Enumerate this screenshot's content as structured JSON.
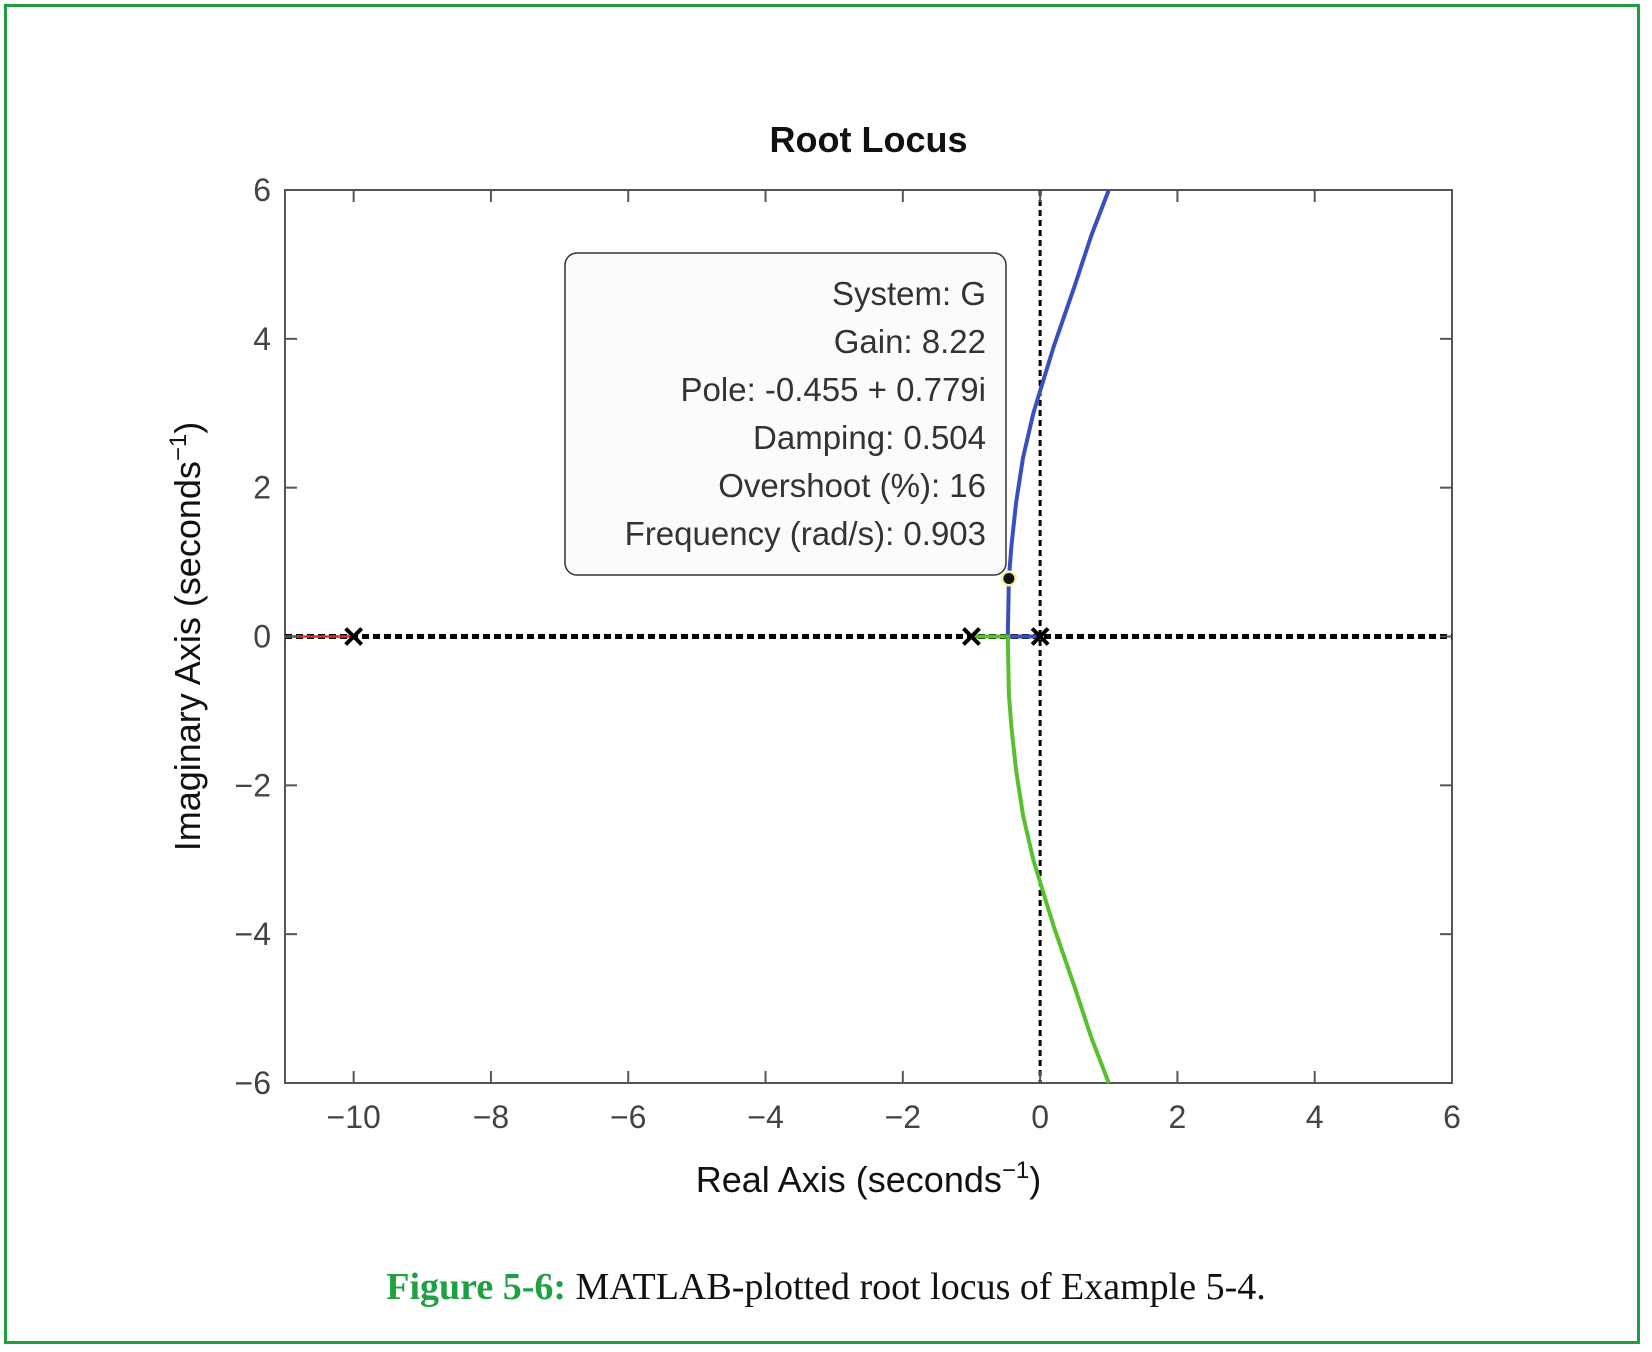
{
  "chart_data": {
    "type": "line",
    "title": "Root Locus",
    "xlabel": "Real Axis (seconds",
    "xlabel_sup": "−1",
    "xlabel_end": ")",
    "ylabel": "Imaginary Axis (seconds",
    "ylabel_sup": "−1",
    "ylabel_end": ")",
    "xlim": [
      -11,
      6
    ],
    "ylim": [
      -6,
      6
    ],
    "xticks": [
      -10,
      -8,
      -6,
      -4,
      -2,
      0,
      2,
      4,
      6
    ],
    "xtick_labels": [
      "−10",
      "−8",
      "−6",
      "−4",
      "−2",
      "0",
      "2",
      "4",
      "6"
    ],
    "yticks": [
      -6,
      -4,
      -2,
      0,
      2,
      4,
      6
    ],
    "ytick_labels": [
      "−6",
      "−4",
      "−2",
      "0",
      "2",
      "4",
      "6"
    ],
    "grid": false,
    "poles": [
      [
        -10,
        0
      ],
      [
        -1,
        0
      ],
      [
        0,
        0
      ]
    ],
    "series": [
      {
        "color": "#e03030",
        "points": [
          [
            -11,
            0
          ],
          [
            -10,
            0
          ]
        ]
      },
      {
        "color": "#3a4fbf",
        "points": [
          [
            0,
            0
          ],
          [
            -0.47,
            0
          ],
          [
            -0.47,
            0.1
          ],
          [
            -0.46,
            0.5
          ],
          [
            -0.455,
            0.779
          ],
          [
            -0.42,
            1.2
          ],
          [
            -0.35,
            1.8
          ],
          [
            -0.25,
            2.4
          ],
          [
            -0.1,
            3.0
          ],
          [
            0,
            3.3
          ],
          [
            0.2,
            3.9
          ],
          [
            0.5,
            4.7
          ],
          [
            0.75,
            5.4
          ],
          [
            1.0,
            6.0
          ]
        ]
      },
      {
        "color": "#58c02c",
        "points": [
          [
            -1,
            0
          ],
          [
            -0.47,
            0
          ],
          [
            -0.47,
            -0.1
          ],
          [
            -0.46,
            -0.5
          ],
          [
            -0.455,
            -0.779
          ],
          [
            -0.42,
            -1.2
          ],
          [
            -0.35,
            -1.8
          ],
          [
            -0.25,
            -2.4
          ],
          [
            -0.1,
            -3.0
          ],
          [
            0,
            -3.3
          ],
          [
            0.2,
            -3.9
          ],
          [
            0.5,
            -4.7
          ],
          [
            0.75,
            -5.4
          ],
          [
            1.0,
            -6.0
          ]
        ]
      }
    ],
    "datatip": {
      "point": [
        -0.455,
        0.779
      ],
      "lines": [
        "System: G",
        "Gain: 8.22",
        "Pole: -0.455 + 0.779i",
        "Damping: 0.504",
        "Overshoot (%): 16",
        "Frequency (rad/s): 0.903"
      ]
    }
  },
  "caption": {
    "label": "Figure 5-6:",
    "text": " MATLAB-plotted root locus of Example 5-4."
  },
  "colors": {
    "frame": "#20a040",
    "asymptote": "#000000"
  }
}
